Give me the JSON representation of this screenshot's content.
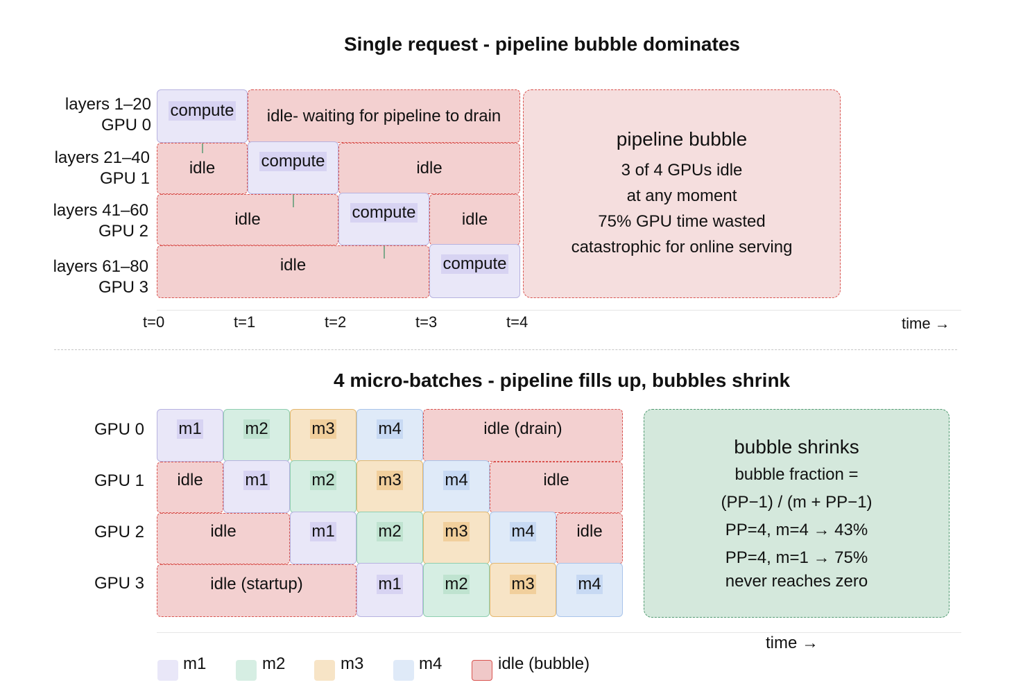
{
  "section1": {
    "title": "Single request - pipeline bubble dominates",
    "rows": [
      {
        "layers": "layers 1–20",
        "gpu": "GPU 0"
      },
      {
        "layers": "layers 21–40",
        "gpu": "GPU 1"
      },
      {
        "layers": "layers 41–60",
        "gpu": "GPU 2"
      },
      {
        "layers": "layers 61–80",
        "gpu": "GPU 3"
      }
    ],
    "compute_label": "compute",
    "idle_label": "idle",
    "idle_drain_label": "idle- waiting for pipeline to drain",
    "ticks": [
      "t=0",
      "t=1",
      "t=2",
      "t=3",
      "t=4"
    ],
    "time_label": "time →",
    "note": {
      "heading": "pipeline bubble",
      "lines": [
        "3 of 4 GPUs idle",
        "at any moment",
        "75% GPU time wasted",
        "catastrophic for online serving"
      ]
    }
  },
  "section2": {
    "title": "4 micro-batches - pipeline fills up, bubbles shrink",
    "gpus": [
      "GPU 0",
      "GPU 1",
      "GPU 2",
      "GPU 3"
    ],
    "idle_label": "idle",
    "idle_drain_label": "idle (drain)",
    "idle_startup_label": "idle (startup)",
    "micro": [
      "m1",
      "m2",
      "m3",
      "m4"
    ],
    "time_label": "time →",
    "note": {
      "heading": "bubble shrinks",
      "lines": [
        "bubble fraction =",
        "(PP−1) / (m + PP−1)",
        "PP=4, m=4 → 43%",
        "PP=4, m=1 → 75%",
        "never reaches zero"
      ]
    },
    "legend": [
      "m1",
      "m2",
      "m3",
      "m4",
      "idle (bubble)"
    ]
  },
  "colors": {
    "idle_fill": "#f3d0d0",
    "idle_border": "#d9534f",
    "m1": "#e9e7f8",
    "m2": "#d6eee3",
    "m3": "#f7e4c6",
    "m4": "#dfeaf8",
    "note_green": "#d4e8dc"
  }
}
